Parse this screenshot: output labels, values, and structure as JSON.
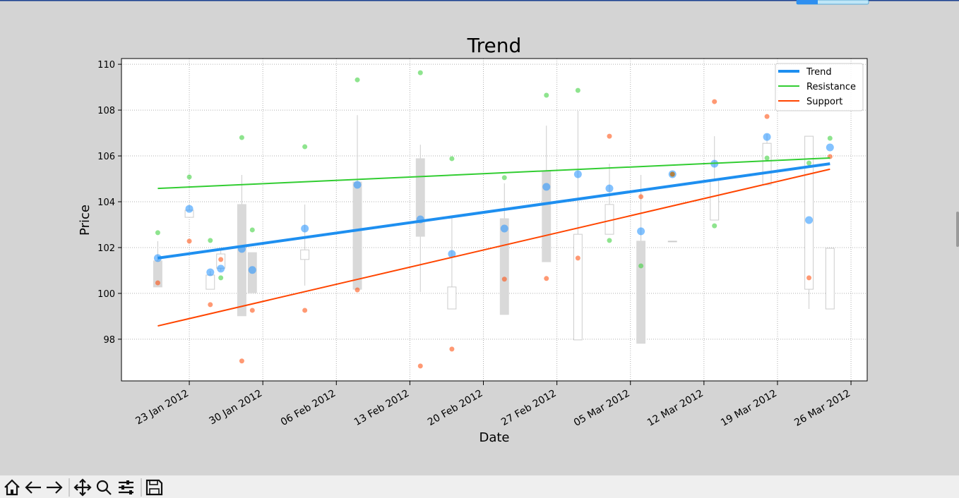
{
  "chart_data": {
    "type": "candlestick",
    "title": "Trend",
    "xlabel": "Date",
    "ylabel": "Price",
    "xlim": [
      "2012-01-16T13:00:00Z",
      "2012-03-27T13:00:00Z"
    ],
    "xticks": [
      {
        "value": "2012-01-23",
        "label": "23 Jan 2012"
      },
      {
        "value": "2012-01-30",
        "label": "30 Jan 2012"
      },
      {
        "value": "2012-02-06",
        "label": "06 Feb 2012"
      },
      {
        "value": "2012-02-13",
        "label": "13 Feb 2012"
      },
      {
        "value": "2012-02-20",
        "label": "20 Feb 2012"
      },
      {
        "value": "2012-02-27",
        "label": "27 Feb 2012"
      },
      {
        "value": "2012-03-05",
        "label": "05 Mar 2012"
      },
      {
        "value": "2012-03-12",
        "label": "12 Mar 2012"
      },
      {
        "value": "2012-03-19",
        "label": "19 Mar 2012"
      },
      {
        "value": "2012-03-26",
        "label": "26 Mar 2012"
      }
    ],
    "ylim": [
      96.18,
      110.25
    ],
    "yticks": [
      98,
      100,
      102,
      104,
      106,
      108,
      110
    ],
    "grid": true,
    "candles": {
      "up_color": "#ffffff",
      "down_color": "#d9d9d9",
      "edge_color": "#cccccc",
      "x": [
        "2012-01-20",
        "2012-01-23",
        "2012-01-25",
        "2012-01-26",
        "2012-01-28",
        "2012-01-29",
        "2012-02-03",
        "2012-02-08",
        "2012-02-14",
        "2012-02-17",
        "2012-02-22",
        "2012-02-26",
        "2012-02-29",
        "2012-03-03",
        "2012-03-06",
        "2012-03-09",
        "2012-03-13",
        "2012-03-18",
        "2012-03-22",
        "2012-03-24"
      ],
      "open": [
        101.42,
        103.32,
        100.18,
        101.1,
        103.88,
        101.78,
        101.48,
        104.86,
        105.88,
        99.32,
        103.26,
        105.35,
        97.97,
        102.58,
        102.28,
        102.26,
        103.2,
        104.74,
        100.18,
        99.32
      ],
      "high": [
        102.28,
        103.9,
        100.98,
        101.97,
        105.17,
        101.78,
        103.88,
        107.78,
        106.49,
        103.32,
        104.8,
        107.32,
        107.97,
        105.66,
        105.17,
        102.28,
        106.86,
        106.95,
        106.86,
        101.97
      ],
      "low": [
        100.28,
        103.3,
        100.18,
        100.98,
        99.02,
        100.03,
        100.34,
        100.18,
        100.06,
        99.32,
        99.08,
        101.38,
        97.97,
        102.58,
        97.82,
        102.26,
        103.2,
        104.74,
        99.32,
        99.32
      ],
      "close": [
        100.28,
        103.63,
        100.8,
        101.72,
        99.02,
        100.03,
        101.9,
        100.18,
        102.49,
        100.28,
        99.08,
        101.38,
        102.58,
        103.88,
        97.82,
        102.28,
        104.95,
        106.55,
        106.86,
        101.97
      ]
    },
    "points": [
      {
        "color": "#1e90ff",
        "size": 5.5,
        "values": [
          101.54,
          103.69,
          100.92,
          101.08,
          101.94,
          101.02,
          102.83,
          104.74,
          103.23,
          101.72,
          102.83,
          104.65,
          105.2,
          104.58,
          102.71,
          105.2,
          105.66,
          106.83,
          103.2,
          106.37
        ]
      },
      {
        "color": "#32cd32",
        "size": 3.5,
        "values": [
          102.65,
          105.08,
          102.31,
          100.68,
          106.8,
          102.77,
          106.4,
          109.32,
          109.63,
          105.88,
          105.05,
          108.65,
          108.86,
          102.31,
          101.2,
          105.2,
          102.95,
          105.91,
          105.69,
          106.77
        ]
      },
      {
        "color": "#ff4500",
        "size": 3.5,
        "values": [
          100.46,
          102.28,
          99.51,
          101.48,
          97.05,
          99.26,
          99.26,
          100.15,
          96.83,
          97.57,
          100.62,
          100.65,
          101.54,
          106.86,
          104.22,
          105.2,
          108.37,
          107.72,
          100.68,
          105.97
        ]
      }
    ],
    "series": [
      {
        "name": "Trend",
        "color": "#1e8ff0",
        "width": 4,
        "x": [
          "2012-01-20",
          "2012-03-24"
        ],
        "values": [
          101.54,
          105.66
        ]
      },
      {
        "name": "Resistance",
        "color": "#32cd32",
        "width": 2,
        "x": [
          "2012-01-20",
          "2012-03-24"
        ],
        "values": [
          104.58,
          105.91
        ]
      },
      {
        "name": "Support",
        "color": "#ff4500",
        "width": 2,
        "x": [
          "2012-01-20",
          "2012-03-24"
        ],
        "values": [
          98.58,
          105.42
        ]
      }
    ],
    "legend": "upper right"
  }
}
